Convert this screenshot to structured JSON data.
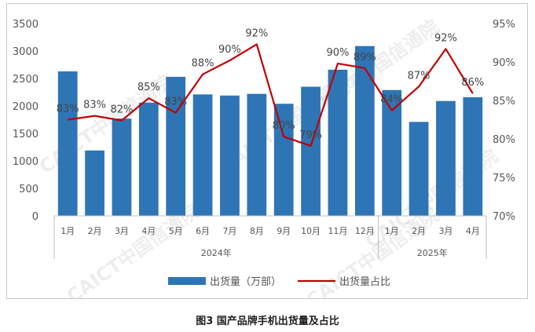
{
  "chart_data": {
    "type": "bar+line",
    "categories": [
      "1月",
      "2月",
      "3月",
      "4月",
      "5月",
      "6月",
      "7月",
      "8月",
      "9月",
      "10月",
      "11月",
      "12月",
      "1月",
      "2月",
      "3月",
      "4月"
    ],
    "year_groups": [
      {
        "label": "2024年",
        "start": 0,
        "end": 11
      },
      {
        "label": "2025年",
        "start": 12,
        "end": 15
      }
    ],
    "series": [
      {
        "name": "出货量（万部）",
        "type": "bar",
        "axis": "left",
        "color": "#2e75b6",
        "values": [
          2630,
          1190,
          1770,
          2060,
          2530,
          2210,
          2190,
          2220,
          2040,
          2350,
          2660,
          3090,
          2290,
          1710,
          2090,
          2160
        ]
      },
      {
        "name": "出货量占比",
        "type": "line",
        "axis": "right",
        "color": "#c00000",
        "values": [
          82.5,
          83.0,
          82.4,
          85.3,
          83.4,
          88.4,
          90.2,
          92.3,
          80.3,
          79.1,
          89.8,
          89.2,
          83.7,
          86.8,
          91.7,
          85.9
        ],
        "labels": [
          "83%",
          "83%",
          "82%",
          "85%",
          "83%",
          "88%",
          "90%",
          "92%",
          "80%",
          "79%",
          "90%",
          "89%",
          "84%",
          "87%",
          "92%",
          "86%"
        ]
      }
    ],
    "left_axis": {
      "ticks": [
        "0",
        "500",
        "1000",
        "1500",
        "2000",
        "2500",
        "3000",
        "3500"
      ],
      "min": 0,
      "max": 3500
    },
    "right_axis": {
      "ticks": [
        "70%",
        "75%",
        "80%",
        "85%",
        "90%",
        "95%"
      ],
      "min": 70,
      "max": 95
    },
    "legend": {
      "position": "bottom"
    },
    "gridlines": false
  },
  "caption": "图3   国产品牌手机出货量及占比",
  "watermark": "CAICT中国信通院"
}
